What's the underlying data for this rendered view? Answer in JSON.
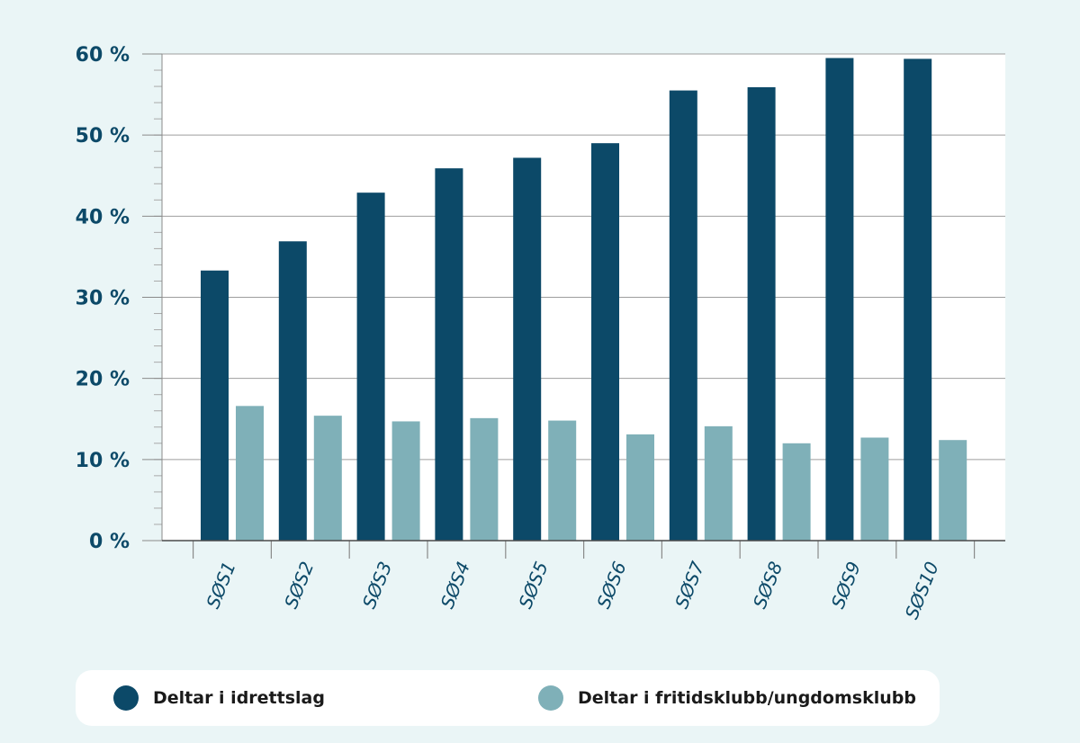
{
  "chart_data": {
    "type": "bar",
    "categories": [
      "SØS1",
      "SØS2",
      "SØS3",
      "SØS4",
      "SØS5",
      "SØS6",
      "SØS7",
      "SØS8",
      "SØS9",
      "SØS10"
    ],
    "series": [
      {
        "name": "Deltar i idrettslag",
        "color": "#0c4968",
        "values": [
          33.3,
          36.9,
          42.9,
          45.9,
          47.2,
          49.0,
          55.5,
          55.9,
          59.5,
          59.4
        ]
      },
      {
        "name": "Deltar i fritidsklubb/ungdomsklubb",
        "color": "#7fb0b8",
        "values": [
          16.6,
          15.4,
          14.7,
          15.1,
          14.8,
          13.1,
          14.1,
          12.0,
          12.7,
          12.4
        ]
      }
    ],
    "ylim": [
      0,
      60
    ],
    "yticks": [
      0,
      10,
      20,
      30,
      40,
      50,
      60
    ],
    "ytick_labels": [
      "0 %",
      "10 %",
      "20 %",
      "30 %",
      "40 %",
      "50 %",
      "60 %"
    ],
    "grid": true,
    "legend_position": "bottom",
    "axis_text_color": "#0c4968"
  }
}
